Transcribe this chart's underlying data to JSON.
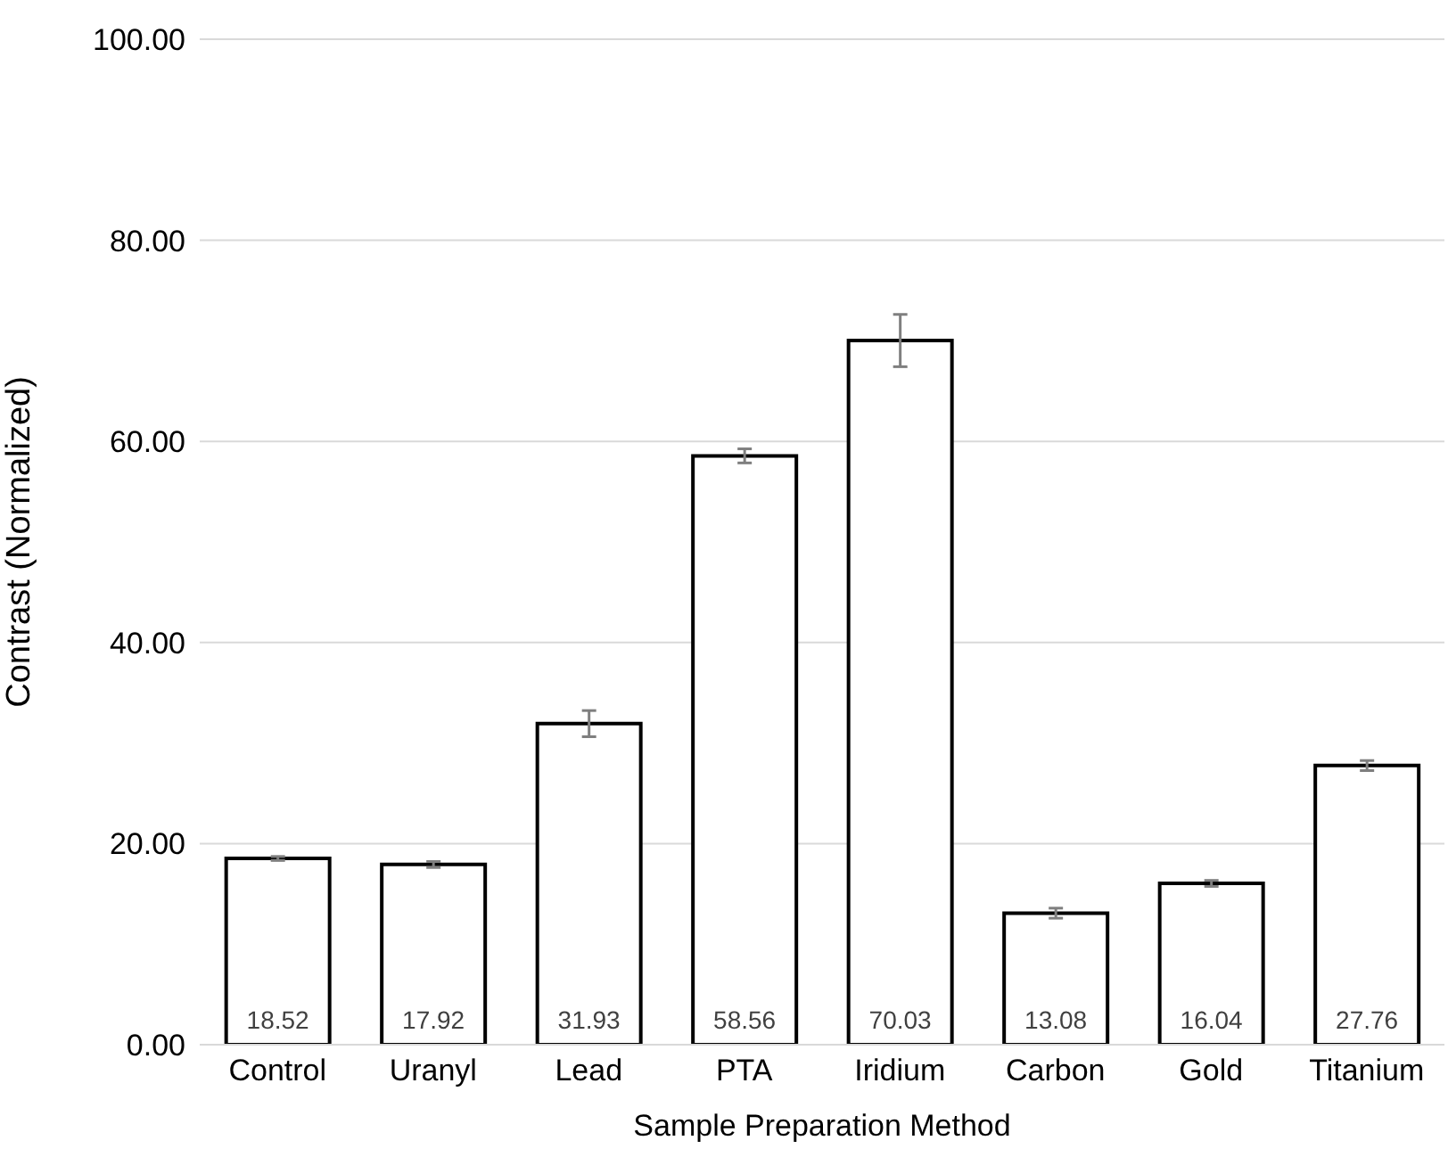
{
  "chart_data": {
    "type": "bar",
    "xlabel": "Sample Preparation Method",
    "ylabel": "Contrast (Normalized)",
    "categories": [
      "Control",
      "Uranyl",
      "Lead",
      "PTA",
      "Iridium",
      "Carbon",
      "Gold",
      "Titanium"
    ],
    "values": [
      18.52,
      17.92,
      31.93,
      58.56,
      70.03,
      13.08,
      16.04,
      27.76
    ],
    "errors": [
      0.2,
      0.3,
      1.3,
      0.7,
      2.6,
      0.5,
      0.3,
      0.5
    ],
    "color": "#ffffff",
    "data_labels": true,
    "ylim": [
      0,
      100
    ],
    "yticks": [
      {
        "value": 0,
        "label": "0.00"
      },
      {
        "value": 20,
        "label": "20.00"
      },
      {
        "value": 40,
        "label": "40.00"
      },
      {
        "value": 60,
        "label": "60.00"
      },
      {
        "value": 80,
        "label": "80.00"
      },
      {
        "value": 100,
        "label": "100.00"
      }
    ],
    "grid": "y",
    "legend": false
  }
}
